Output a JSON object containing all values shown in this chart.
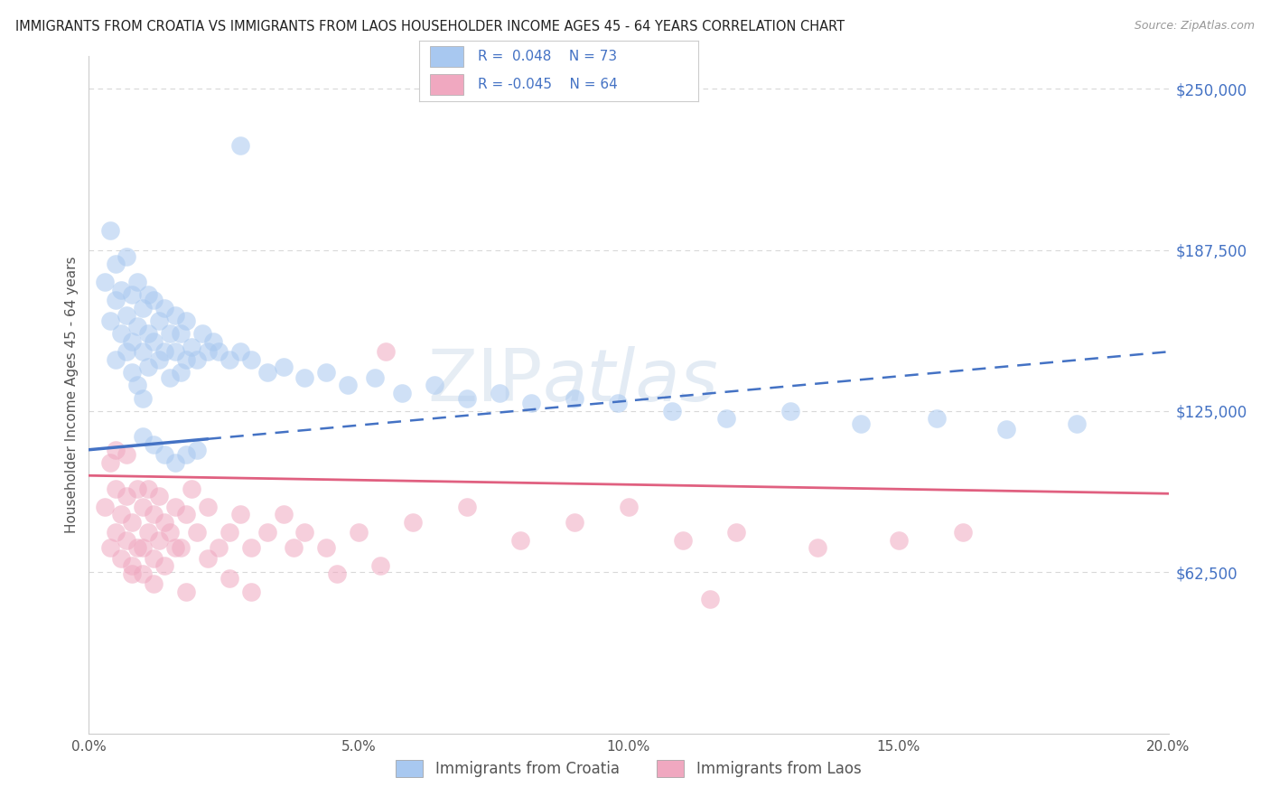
{
  "title": "IMMIGRANTS FROM CROATIA VS IMMIGRANTS FROM LAOS HOUSEHOLDER INCOME AGES 45 - 64 YEARS CORRELATION CHART",
  "source": "Source: ZipAtlas.com",
  "ylabel": "Householder Income Ages 45 - 64 years",
  "xlim": [
    0.0,
    0.2
  ],
  "ylim": [
    0,
    262500
  ],
  "ytick_vals": [
    62500,
    125000,
    187500,
    250000
  ],
  "ytick_labels": [
    "$62,500",
    "$125,000",
    "$187,500",
    "$250,000"
  ],
  "xticks": [
    0.0,
    0.05,
    0.1,
    0.15,
    0.2
  ],
  "xtick_labels": [
    "0.0%",
    "5.0%",
    "10.0%",
    "15.0%",
    "20.0%"
  ],
  "croatia_color": "#a8c8f0",
  "laos_color": "#f0a8c0",
  "croatia_line_color": "#4472c4",
  "laos_line_color": "#e06080",
  "croatia_R": 0.048,
  "croatia_N": 73,
  "laos_R": -0.045,
  "laos_N": 64,
  "watermark": "ZIPatlas",
  "legend_R_color": "#4472c4",
  "background_color": "#ffffff",
  "grid_color": "#d8d8d8",
  "croatia_line_y0": 110000,
  "croatia_line_y1": 148000,
  "laos_line_y0": 100000,
  "laos_line_y1": 93000,
  "croatia_x": [
    0.003,
    0.004,
    0.004,
    0.005,
    0.005,
    0.005,
    0.006,
    0.006,
    0.007,
    0.007,
    0.007,
    0.008,
    0.008,
    0.008,
    0.009,
    0.009,
    0.009,
    0.01,
    0.01,
    0.01,
    0.011,
    0.011,
    0.011,
    0.012,
    0.012,
    0.013,
    0.013,
    0.014,
    0.014,
    0.015,
    0.015,
    0.016,
    0.016,
    0.017,
    0.017,
    0.018,
    0.018,
    0.019,
    0.02,
    0.021,
    0.022,
    0.023,
    0.024,
    0.026,
    0.028,
    0.03,
    0.033,
    0.036,
    0.04,
    0.044,
    0.048,
    0.053,
    0.058,
    0.064,
    0.07,
    0.076,
    0.082,
    0.09,
    0.098,
    0.108,
    0.118,
    0.13,
    0.143,
    0.157,
    0.17,
    0.183,
    0.01,
    0.012,
    0.014,
    0.016,
    0.018,
    0.02,
    0.028
  ],
  "croatia_y": [
    175000,
    195000,
    160000,
    145000,
    168000,
    182000,
    155000,
    172000,
    148000,
    162000,
    185000,
    152000,
    170000,
    140000,
    158000,
    175000,
    135000,
    148000,
    165000,
    130000,
    155000,
    170000,
    142000,
    152000,
    168000,
    145000,
    160000,
    148000,
    165000,
    138000,
    155000,
    148000,
    162000,
    140000,
    155000,
    145000,
    160000,
    150000,
    145000,
    155000,
    148000,
    152000,
    148000,
    145000,
    148000,
    145000,
    140000,
    142000,
    138000,
    140000,
    135000,
    138000,
    132000,
    135000,
    130000,
    132000,
    128000,
    130000,
    128000,
    125000,
    122000,
    125000,
    120000,
    122000,
    118000,
    120000,
    115000,
    112000,
    108000,
    105000,
    108000,
    110000,
    228000
  ],
  "laos_x": [
    0.003,
    0.004,
    0.004,
    0.005,
    0.005,
    0.005,
    0.006,
    0.006,
    0.007,
    0.007,
    0.007,
    0.008,
    0.008,
    0.009,
    0.009,
    0.01,
    0.01,
    0.011,
    0.011,
    0.012,
    0.012,
    0.013,
    0.013,
    0.014,
    0.015,
    0.016,
    0.017,
    0.018,
    0.019,
    0.02,
    0.022,
    0.024,
    0.026,
    0.028,
    0.03,
    0.033,
    0.036,
    0.04,
    0.044,
    0.05,
    0.055,
    0.06,
    0.07,
    0.08,
    0.09,
    0.1,
    0.11,
    0.12,
    0.135,
    0.15,
    0.162,
    0.008,
    0.01,
    0.012,
    0.014,
    0.016,
    0.018,
    0.022,
    0.026,
    0.03,
    0.038,
    0.046,
    0.054,
    0.115
  ],
  "laos_y": [
    88000,
    105000,
    72000,
    95000,
    78000,
    110000,
    85000,
    68000,
    92000,
    75000,
    108000,
    82000,
    65000,
    95000,
    72000,
    88000,
    62000,
    78000,
    95000,
    68000,
    85000,
    75000,
    92000,
    82000,
    78000,
    88000,
    72000,
    85000,
    95000,
    78000,
    88000,
    72000,
    78000,
    85000,
    72000,
    78000,
    85000,
    78000,
    72000,
    78000,
    148000,
    82000,
    88000,
    75000,
    82000,
    88000,
    75000,
    78000,
    72000,
    75000,
    78000,
    62000,
    72000,
    58000,
    65000,
    72000,
    55000,
    68000,
    60000,
    55000,
    72000,
    62000,
    65000,
    52000
  ]
}
